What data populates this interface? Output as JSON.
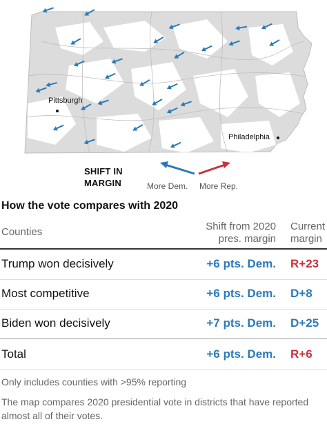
{
  "map": {
    "cities": [
      {
        "name": "Pittsburgh"
      },
      {
        "name": "Philadelphia"
      }
    ],
    "arrow_colors": {
      "dem": "#2a7ab8",
      "rep": "#c7323a"
    }
  },
  "legend": {
    "title_line1": "SHIFT IN",
    "title_line2": "MARGIN",
    "dem_label": "More Dem.",
    "rep_label": "More Rep."
  },
  "table": {
    "title": "How the vote compares with 2020",
    "headers": {
      "counties": "Counties",
      "shift_line1": "Shift from 2020",
      "shift_line2": "pres. margin",
      "current_line1": "Current",
      "current_line2": "margin"
    },
    "rows": [
      {
        "name": "Trump won decisively",
        "shift": "+6 pts. Dem.",
        "margin": "R+23",
        "margin_color": "#c7323a"
      },
      {
        "name": "Most competitive",
        "shift": "+6 pts. Dem.",
        "margin": "D+8",
        "margin_color": "#2a7ab8"
      },
      {
        "name": "Biden won decisively",
        "shift": "+7 pts. Dem.",
        "margin": "D+25",
        "margin_color": "#2a7ab8"
      },
      {
        "name": "Total",
        "shift": "+6 pts. Dem.",
        "margin": "R+6",
        "margin_color": "#c7323a"
      }
    ],
    "footnote": "Only includes counties with >95% reporting",
    "description": "The map compares 2020 presidential vote in districts that have reported almost all of their votes."
  }
}
